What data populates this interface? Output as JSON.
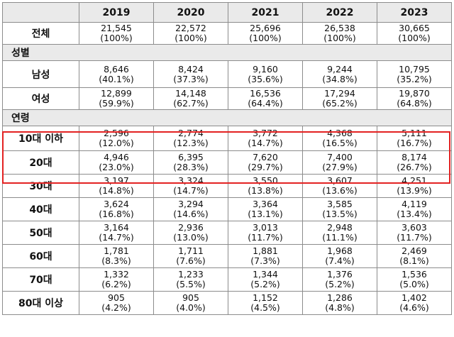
{
  "header": {
    "corner": "",
    "years": [
      "2019",
      "2020",
      "2021",
      "2022",
      "2023"
    ]
  },
  "rows": [
    {
      "type": "data",
      "label": "전체",
      "cells": [
        {
          "n": "21,545",
          "p": "(100%)"
        },
        {
          "n": "22,572",
          "p": "(100%)"
        },
        {
          "n": "25,696",
          "p": "(100%)"
        },
        {
          "n": "26,538",
          "p": "(100%)"
        },
        {
          "n": "30,665",
          "p": "(100%)"
        }
      ]
    },
    {
      "type": "section",
      "label": "성별"
    },
    {
      "type": "data",
      "label": "남성",
      "cells": [
        {
          "n": "8,646",
          "p": "(40.1%)"
        },
        {
          "n": "8,424",
          "p": "(37.3%)"
        },
        {
          "n": "9,160",
          "p": "(35.6%)"
        },
        {
          "n": "9,244",
          "p": "(34.8%)"
        },
        {
          "n": "10,795",
          "p": "(35.2%)"
        }
      ]
    },
    {
      "type": "data",
      "label": "여성",
      "cells": [
        {
          "n": "12,899",
          "p": "(59.9%)"
        },
        {
          "n": "14,148",
          "p": "(62.7%)"
        },
        {
          "n": "16,536",
          "p": "(64.4%)"
        },
        {
          "n": "17,294",
          "p": "(65.2%)"
        },
        {
          "n": "19,870",
          "p": "(64.8%)"
        }
      ]
    },
    {
      "type": "section",
      "label": "연령"
    },
    {
      "type": "data",
      "label": "10대 이하",
      "cells": [
        {
          "n": "2,596",
          "p": "(12.0%)"
        },
        {
          "n": "2,774",
          "p": "(12.3%)"
        },
        {
          "n": "3,772",
          "p": "(14.7%)"
        },
        {
          "n": "4,368",
          "p": "(16.5%)"
        },
        {
          "n": "5,111",
          "p": "(16.7%)"
        }
      ]
    },
    {
      "type": "data",
      "label": "20대",
      "cells": [
        {
          "n": "4,946",
          "p": "(23.0%)"
        },
        {
          "n": "6,395",
          "p": "(28.3%)"
        },
        {
          "n": "7,620",
          "p": "(29.7%)"
        },
        {
          "n": "7,400",
          "p": "(27.9%)"
        },
        {
          "n": "8,174",
          "p": "(26.7%)"
        }
      ]
    },
    {
      "type": "data",
      "label": "30대",
      "cells": [
        {
          "n": "3,197",
          "p": "(14.8%)"
        },
        {
          "n": "3,324",
          "p": "(14.7%)"
        },
        {
          "n": "3,550",
          "p": "(13.8%)"
        },
        {
          "n": "3,607",
          "p": "(13.6%)"
        },
        {
          "n": "4,251",
          "p": "(13.9%)"
        }
      ]
    },
    {
      "type": "data",
      "label": "40대",
      "cells": [
        {
          "n": "3,624",
          "p": "(16.8%)"
        },
        {
          "n": "3,294",
          "p": "(14.6%)"
        },
        {
          "n": "3,364",
          "p": "(13.1%)"
        },
        {
          "n": "3,585",
          "p": "(13.5%)"
        },
        {
          "n": "4,119",
          "p": "(13.4%)"
        }
      ]
    },
    {
      "type": "data",
      "label": "50대",
      "cells": [
        {
          "n": "3,164",
          "p": "(14.7%)"
        },
        {
          "n": "2,936",
          "p": "(13.0%)"
        },
        {
          "n": "3,013",
          "p": "(11.7%)"
        },
        {
          "n": "2,948",
          "p": "(11.1%)"
        },
        {
          "n": "3,603",
          "p": "(11.7%)"
        }
      ]
    },
    {
      "type": "data",
      "label": "60대",
      "cells": [
        {
          "n": "1,781",
          "p": "(8.3%)"
        },
        {
          "n": "1,711",
          "p": "(7.6%)"
        },
        {
          "n": "1,881",
          "p": "(7.3%)"
        },
        {
          "n": "1,968",
          "p": "(7.4%)"
        },
        {
          "n": "2,469",
          "p": "(8.1%)"
        }
      ]
    },
    {
      "type": "data",
      "label": "70대",
      "cells": [
        {
          "n": "1,332",
          "p": "(6.2%)"
        },
        {
          "n": "1,233",
          "p": "(5.5%)"
        },
        {
          "n": "1,344",
          "p": "(5.2%)"
        },
        {
          "n": "1,376",
          "p": "(5.2%)"
        },
        {
          "n": "1,536",
          "p": "(5.0%)"
        }
      ]
    },
    {
      "type": "data",
      "label": "80대 이상",
      "cells": [
        {
          "n": "905",
          "p": "(4.2%)"
        },
        {
          "n": "905",
          "p": "(4.0%)"
        },
        {
          "n": "1,152",
          "p": "(4.5%)"
        },
        {
          "n": "1,286",
          "p": "(4.8%)"
        },
        {
          "n": "1,402",
          "p": "(4.6%)"
        }
      ]
    }
  ],
  "colors": {
    "header_bg": "#eaeaea",
    "border": "#8c8c8c",
    "highlight": "#e32222"
  }
}
